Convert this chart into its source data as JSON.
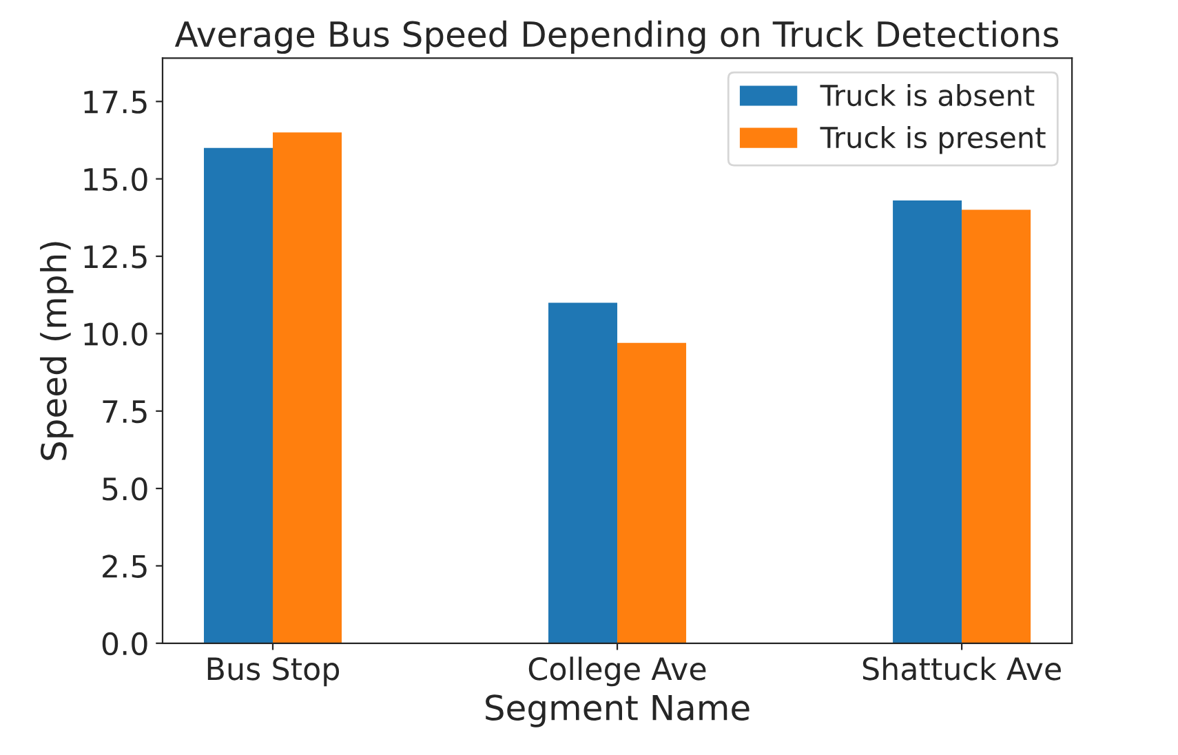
{
  "chart_data": {
    "type": "bar",
    "title": "Average Bus Speed Depending on Truck Detections",
    "xlabel": "Segment Name",
    "ylabel": "Speed (mph)",
    "categories": [
      "Bus Stop",
      "College Ave",
      "Shattuck Ave"
    ],
    "series": [
      {
        "name": "Truck is absent",
        "color": "#1f77b4",
        "values": [
          16.0,
          11.0,
          14.3
        ]
      },
      {
        "name": "Truck is present",
        "color": "#ff7f0e",
        "values": [
          16.5,
          9.7,
          14.0
        ]
      }
    ],
    "ylim": [
      0,
      18.9
    ],
    "yticks": [
      {
        "value": 0,
        "label": "0.0"
      },
      2.5,
      {
        "value": 5,
        "label": "5.0"
      },
      7.5,
      {
        "value": 10,
        "label": "10.0"
      },
      12.5,
      {
        "value": 15,
        "label": "15.0"
      },
      17.5
    ],
    "legend": "top right",
    "grid": false
  }
}
